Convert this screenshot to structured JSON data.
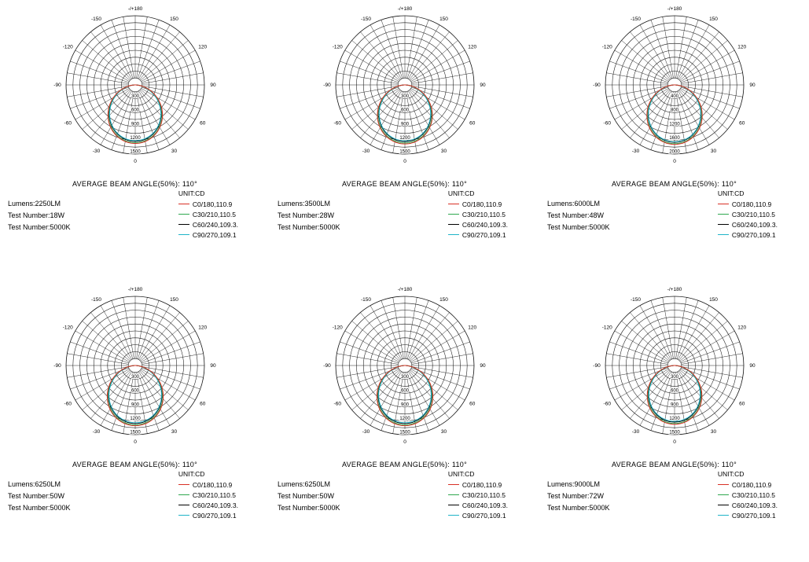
{
  "shared": {
    "unit_label": "UNIT:CD",
    "caption": "AVERAGE BEAM ANGLE(50%): 110°",
    "angle_labels": [
      "-/+180",
      "-150",
      "-120",
      "-90",
      "-60",
      "-30",
      "0",
      "30",
      "60",
      "90",
      "120",
      "150"
    ],
    "legend": [
      {
        "label": "C0/180,110.9",
        "color": "#d93025"
      },
      {
        "label": "C30/210,110.5",
        "color": "#2fa84f"
      },
      {
        "label": "C60/240,109.3.",
        "color": "#000000"
      },
      {
        "label": "C90/270,109.1",
        "color": "#1fb4c8"
      }
    ]
  },
  "chart_data": [
    {
      "type": "line",
      "projection": "polar",
      "title": "AVERAGE BEAM ANGLE(50%): 110°",
      "unit": "CD",
      "angle_ticks_deg": [
        0,
        30,
        60,
        90,
        120,
        150,
        180,
        -30,
        -60,
        -90,
        -120,
        -150
      ],
      "radial_ticks": [
        300,
        600,
        900,
        1200,
        1500
      ],
      "radial_max": 1500,
      "rings": 10,
      "spoke_step_deg": 10,
      "series": [
        {
          "name": "C0/180",
          "beam_angle_50": 110.9,
          "peak_cd": 1270,
          "color": "#d93025"
        },
        {
          "name": "C30/210",
          "beam_angle_50": 110.5,
          "peak_cd": 1255,
          "color": "#2fa84f"
        },
        {
          "name": "C60/240",
          "beam_angle_50": 109.3,
          "peak_cd": 1225,
          "color": "#000000"
        },
        {
          "name": "C90/270",
          "beam_angle_50": 109.1,
          "peak_cd": 1210,
          "color": "#1fb4c8"
        }
      ],
      "info": {
        "lines": [
          "Lumens:2250LM",
          "Test Number:18W",
          "Test Number:5000K"
        ]
      }
    },
    {
      "type": "line",
      "projection": "polar",
      "title": "AVERAGE BEAM ANGLE(50%): 110°",
      "unit": "CD",
      "angle_ticks_deg": [
        0,
        30,
        60,
        90,
        120,
        150,
        180,
        -30,
        -60,
        -90,
        -120,
        -150
      ],
      "radial_ticks": [
        300,
        600,
        900,
        1200,
        1500
      ],
      "radial_max": 1500,
      "rings": 10,
      "spoke_step_deg": 10,
      "series": [
        {
          "name": "C0/180",
          "beam_angle_50": 110.9,
          "peak_cd": 1280,
          "color": "#d93025"
        },
        {
          "name": "C30/210",
          "beam_angle_50": 110.5,
          "peak_cd": 1262,
          "color": "#2fa84f"
        },
        {
          "name": "C60/240",
          "beam_angle_50": 109.3,
          "peak_cd": 1230,
          "color": "#000000"
        },
        {
          "name": "C90/270",
          "beam_angle_50": 109.1,
          "peak_cd": 1215,
          "color": "#1fb4c8"
        }
      ],
      "info": {
        "lines": [
          "Lumens:3500LM",
          "Test Number:28W",
          "Test Number:5000K"
        ]
      }
    },
    {
      "type": "line",
      "projection": "polar",
      "title": "AVERAGE BEAM ANGLE(50%): 110°",
      "unit": "CD",
      "angle_ticks_deg": [
        0,
        30,
        60,
        90,
        120,
        150,
        180,
        -30,
        -60,
        -90,
        -120,
        -150
      ],
      "radial_ticks": [
        400,
        800,
        1200,
        1600,
        2000
      ],
      "radial_max": 2000,
      "rings": 10,
      "spoke_step_deg": 10,
      "series": [
        {
          "name": "C0/180",
          "beam_angle_50": 110.9,
          "peak_cd": 1720,
          "color": "#d93025"
        },
        {
          "name": "C30/210",
          "beam_angle_50": 110.5,
          "peak_cd": 1700,
          "color": "#2fa84f"
        },
        {
          "name": "C60/240",
          "beam_angle_50": 109.3,
          "peak_cd": 1660,
          "color": "#000000"
        },
        {
          "name": "C90/270",
          "beam_angle_50": 109.1,
          "peak_cd": 1645,
          "color": "#1fb4c8"
        }
      ],
      "info": {
        "lines": [
          "Lumens:6000LM",
          "Test Number:48W",
          "Test Number:5000K"
        ]
      }
    },
    {
      "type": "line",
      "projection": "polar",
      "title": "AVERAGE BEAM ANGLE(50%): 110°",
      "unit": "CD",
      "angle_ticks_deg": [
        0,
        30,
        60,
        90,
        120,
        150,
        180,
        -30,
        -60,
        -90,
        -120,
        -150
      ],
      "radial_ticks": [
        300,
        600,
        900,
        1200,
        1500
      ],
      "radial_max": 1500,
      "rings": 10,
      "spoke_step_deg": 10,
      "series": [
        {
          "name": "C0/180",
          "beam_angle_50": 110.9,
          "peak_cd": 1305,
          "color": "#d93025"
        },
        {
          "name": "C30/210",
          "beam_angle_50": 110.5,
          "peak_cd": 1288,
          "color": "#2fa84f"
        },
        {
          "name": "C60/240",
          "beam_angle_50": 109.3,
          "peak_cd": 1258,
          "color": "#000000"
        },
        {
          "name": "C90/270",
          "beam_angle_50": 109.1,
          "peak_cd": 1242,
          "color": "#1fb4c8"
        }
      ],
      "info": {
        "lines": [
          "Lumens:6250LM",
          "Test Number:50W",
          "Test Number:5000K"
        ]
      }
    },
    {
      "type": "line",
      "projection": "polar",
      "title": "AVERAGE BEAM ANGLE(50%): 110°",
      "unit": "CD",
      "angle_ticks_deg": [
        0,
        30,
        60,
        90,
        120,
        150,
        180,
        -30,
        -60,
        -90,
        -120,
        -150
      ],
      "radial_ticks": [
        300,
        600,
        900,
        1200,
        1500
      ],
      "radial_max": 1500,
      "rings": 10,
      "spoke_step_deg": 10,
      "series": [
        {
          "name": "C0/180",
          "beam_angle_50": 110.9,
          "peak_cd": 1305,
          "color": "#d93025"
        },
        {
          "name": "C30/210",
          "beam_angle_50": 110.5,
          "peak_cd": 1288,
          "color": "#2fa84f"
        },
        {
          "name": "C60/240",
          "beam_angle_50": 109.3,
          "peak_cd": 1258,
          "color": "#000000"
        },
        {
          "name": "C90/270",
          "beam_angle_50": 109.1,
          "peak_cd": 1242,
          "color": "#1fb4c8"
        }
      ],
      "info": {
        "lines": [
          "Lumens:6250LM",
          "Test Number:50W",
          "Test Number:5000K"
        ]
      }
    },
    {
      "type": "line",
      "projection": "polar",
      "title": "AVERAGE BEAM ANGLE(50%): 110°",
      "unit": "CD",
      "angle_ticks_deg": [
        0,
        30,
        60,
        90,
        120,
        150,
        180,
        -30,
        -60,
        -90,
        -120,
        -150
      ],
      "radial_ticks": [
        300,
        600,
        900,
        1200,
        1500
      ],
      "radial_max": 1500,
      "rings": 10,
      "spoke_step_deg": 10,
      "series": [
        {
          "name": "C0/180",
          "beam_angle_50": 110.9,
          "peak_cd": 1275,
          "color": "#d93025"
        },
        {
          "name": "C30/210",
          "beam_angle_50": 110.5,
          "peak_cd": 1258,
          "color": "#2fa84f"
        },
        {
          "name": "C60/240",
          "beam_angle_50": 109.3,
          "peak_cd": 1228,
          "color": "#000000"
        },
        {
          "name": "C90/270",
          "beam_angle_50": 109.1,
          "peak_cd": 1212,
          "color": "#1fb4c8"
        }
      ],
      "info": {
        "lines": [
          "Lumens:9000LM",
          "Test Number:72W",
          "Test Number:5000K"
        ]
      }
    }
  ]
}
